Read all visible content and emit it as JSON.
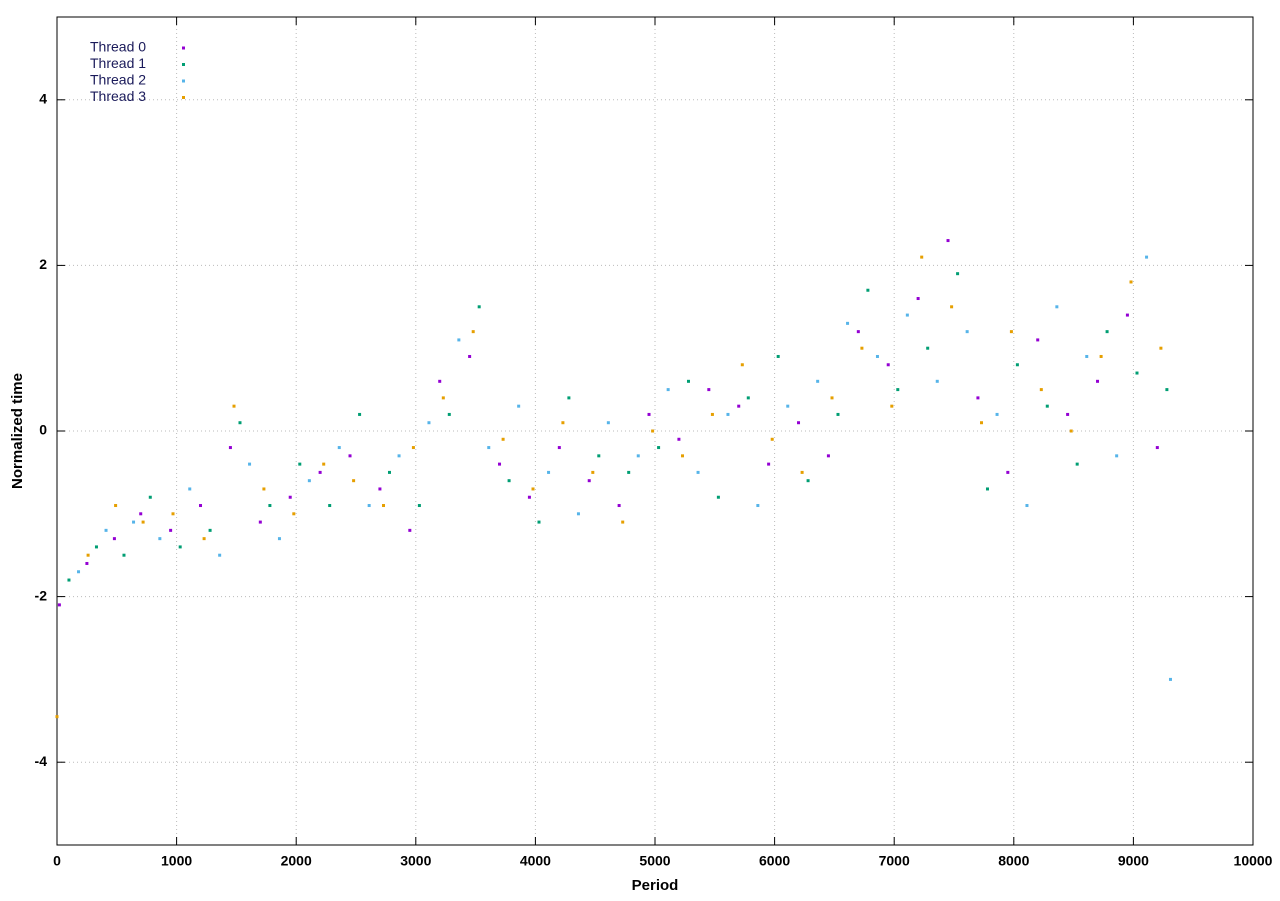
{
  "chart_data": {
    "type": "scatter",
    "xlabel": "Period",
    "ylabel": "Normalized time",
    "xlim": [
      0,
      10000
    ],
    "ylim": [
      -5,
      5
    ],
    "xticks": [
      0,
      1000,
      2000,
      3000,
      4000,
      5000,
      6000,
      7000,
      8000,
      9000,
      10000
    ],
    "yticks": [
      -4,
      -2,
      0,
      2,
      4
    ],
    "grid": true,
    "legend": "top-left",
    "series": [
      {
        "name": "Thread 0",
        "color": "#9400d3",
        "x": [
          20,
          250,
          480,
          700,
          950,
          1200,
          1450,
          1700,
          1950,
          2200,
          2450,
          2700,
          2950,
          3200,
          3450,
          3700,
          3950,
          4200,
          4450,
          4700,
          4950,
          5200,
          5450,
          5700,
          5950,
          6200,
          6450,
          6700,
          6950,
          7200,
          7450,
          7700,
          7950,
          8200,
          8450,
          8700,
          8950,
          9200
        ],
        "values": [
          -2.1,
          -1.6,
          -1.3,
          -1.0,
          -1.2,
          -0.9,
          -0.2,
          -1.1,
          -0.8,
          -0.5,
          -0.3,
          -0.7,
          -1.2,
          0.6,
          0.9,
          -0.4,
          -0.8,
          -0.2,
          -0.6,
          -0.9,
          0.2,
          -0.1,
          0.5,
          0.3,
          -0.4,
          0.1,
          -0.3,
          1.2,
          0.8,
          1.6,
          2.3,
          0.4,
          -0.5,
          1.1,
          0.2,
          0.6,
          1.4,
          -0.2
        ]
      },
      {
        "name": "Thread 1",
        "color": "#009e73",
        "x": [
          100,
          330,
          560,
          780,
          1030,
          1280,
          1530,
          1780,
          2030,
          2280,
          2530,
          2780,
          3030,
          3280,
          3530,
          3780,
          4030,
          4280,
          4530,
          4780,
          5030,
          5280,
          5530,
          5780,
          6030,
          6280,
          6530,
          6780,
          7030,
          7280,
          7530,
          7780,
          8030,
          8280,
          8530,
          8780,
          9030,
          9280
        ],
        "values": [
          -1.8,
          -1.4,
          -1.5,
          -0.8,
          -1.4,
          -1.2,
          0.1,
          -0.9,
          -0.4,
          -0.9,
          0.2,
          -0.5,
          -0.9,
          0.2,
          1.5,
          -0.6,
          -1.1,
          0.4,
          -0.3,
          -0.5,
          -0.2,
          0.6,
          -0.8,
          0.4,
          0.9,
          -0.6,
          0.2,
          1.7,
          0.5,
          1.0,
          1.9,
          -0.7,
          0.8,
          0.3,
          -0.4,
          1.2,
          0.7,
          0.5
        ]
      },
      {
        "name": "Thread 2",
        "color": "#56b4e9",
        "x": [
          180,
          410,
          640,
          860,
          1110,
          1360,
          1610,
          1860,
          2110,
          2360,
          2610,
          2860,
          3110,
          3360,
          3610,
          3860,
          4110,
          4360,
          4610,
          4860,
          5110,
          5360,
          5610,
          5860,
          6110,
          6360,
          6610,
          6860,
          7110,
          7360,
          7610,
          7860,
          8110,
          8360,
          8610,
          8860,
          9110,
          9310
        ],
        "values": [
          -1.7,
          -1.2,
          -1.1,
          -1.3,
          -0.7,
          -1.5,
          -0.4,
          -1.3,
          -0.6,
          -0.2,
          -0.9,
          -0.3,
          0.1,
          1.1,
          -0.2,
          0.3,
          -0.5,
          -1.0,
          0.1,
          -0.3,
          0.5,
          -0.5,
          0.2,
          -0.9,
          0.3,
          0.6,
          1.3,
          0.9,
          1.4,
          0.6,
          1.2,
          0.2,
          -0.9,
          1.5,
          0.9,
          -0.3,
          2.1,
          -3.0
        ]
      },
      {
        "name": "Thread 3",
        "color": "#e69f00",
        "x": [
          0,
          260,
          490,
          720,
          970,
          1230,
          1480,
          1730,
          1980,
          2230,
          2480,
          2730,
          2980,
          3230,
          3480,
          3730,
          3980,
          4230,
          4480,
          4730,
          4980,
          5230,
          5480,
          5730,
          5980,
          6230,
          6480,
          6730,
          6980,
          7230,
          7480,
          7730,
          7980,
          8230,
          8480,
          8730,
          8980,
          9230
        ],
        "values": [
          -3.45,
          -1.5,
          -0.9,
          -1.1,
          -1.0,
          -1.3,
          0.3,
          -0.7,
          -1.0,
          -0.4,
          -0.6,
          -0.9,
          -0.2,
          0.4,
          1.2,
          -0.1,
          -0.7,
          0.1,
          -0.5,
          -1.1,
          0.0,
          -0.3,
          0.2,
          0.8,
          -0.1,
          -0.5,
          0.4,
          1.0,
          0.3,
          2.1,
          1.5,
          0.1,
          1.2,
          0.5,
          0.0,
          0.9,
          1.8,
          1.0
        ]
      }
    ]
  }
}
